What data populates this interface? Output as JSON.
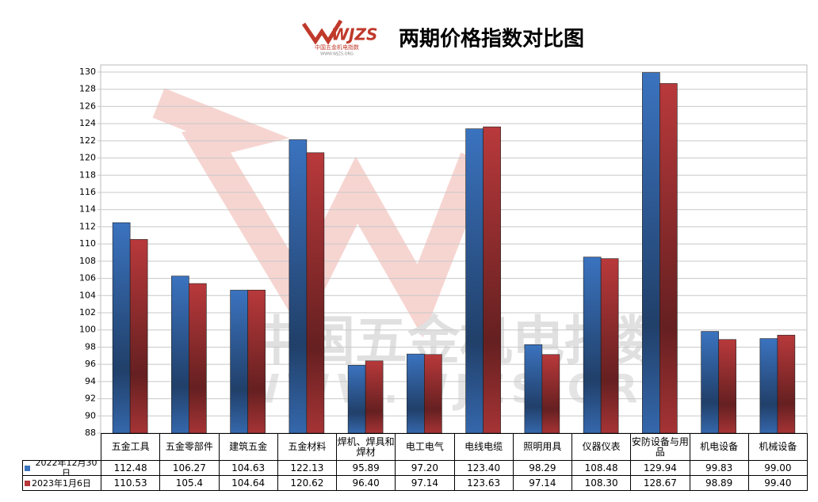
{
  "logo": {
    "mark": "WJZS",
    "name": "中国五金机电指数",
    "site": "WWW.WJZS.ORG"
  },
  "watermark": {
    "name": "中国五金机电指数",
    "site": "WWW.WJZS.ORG"
  },
  "chart_data": {
    "type": "bar",
    "title": "两期价格指数对比图",
    "categories": [
      "五金工具",
      "五金零部件",
      "建筑五金",
      "五金材料",
      "焊机、焊具和焊材",
      "电工电气",
      "电线电缆",
      "照明用具",
      "仪器仪表",
      "安防设备与用品",
      "机电设备",
      "机械设备"
    ],
    "series": [
      {
        "name": "2022年12月30日",
        "color": "#3b73bf",
        "values": [
          112.48,
          106.27,
          104.63,
          122.13,
          95.89,
          97.2,
          123.4,
          98.29,
          108.48,
          129.94,
          99.83,
          99.0
        ],
        "value_labels": [
          "112.48",
          "106.27",
          "104.63",
          "122.13",
          "95.89",
          "97.20",
          "123.40",
          "98.29",
          "108.48",
          "129.94",
          "99.83",
          "99.00"
        ]
      },
      {
        "name": "2023年1月6日",
        "color": "#b8393b",
        "values": [
          110.53,
          105.4,
          104.64,
          120.62,
          96.4,
          97.14,
          123.63,
          97.14,
          108.3,
          128.67,
          98.89,
          99.4
        ],
        "value_labels": [
          "110.53",
          "105.4",
          "104.64",
          "120.62",
          "96.40",
          "97.14",
          "123.63",
          "97.14",
          "108.30",
          "128.67",
          "98.89",
          "99.40"
        ]
      }
    ],
    "ylim": [
      88,
      130
    ],
    "yticks": [
      88,
      90,
      92,
      94,
      96,
      98,
      100,
      102,
      104,
      106,
      108,
      110,
      112,
      114,
      116,
      118,
      120,
      122,
      124,
      126,
      128,
      130
    ],
    "grid": true
  }
}
